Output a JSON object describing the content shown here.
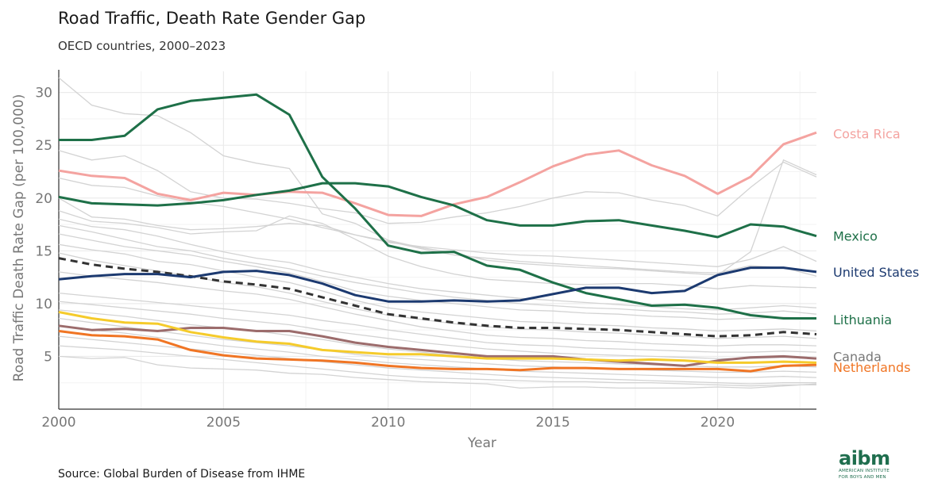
{
  "header": {
    "title": "Road Traffic, Death Rate Gender Gap",
    "subtitle": "OECD countries, 2000–2023"
  },
  "footer": {
    "source": "Source: Global Burden of Disease from IHME",
    "logo_mark": "aibm",
    "logo_line1": "AMERICAN INSTITUTE",
    "logo_line2": "FOR BOYS AND MEN"
  },
  "colors": {
    "background_lines": "#d3d3d3",
    "average": "#333333",
    "grid": "#ebebeb",
    "axis_text": "#777777"
  },
  "chart_data": {
    "type": "line",
    "title": "Road Traffic, Death Rate Gender Gap",
    "subtitle": "OECD countries, 2000–2023",
    "xlabel": "Year",
    "ylabel": "Road Traffic Death Rate Gap (per 100,000)",
    "xlim": [
      2000,
      2023
    ],
    "ylim": [
      0,
      32
    ],
    "x_ticks": [
      2000,
      2005,
      2010,
      2015,
      2020
    ],
    "y_ticks": [
      5,
      10,
      15,
      20,
      25,
      30
    ],
    "grid": true,
    "years": [
      2000,
      2001,
      2002,
      2003,
      2004,
      2005,
      2006,
      2007,
      2008,
      2009,
      2010,
      2011,
      2012,
      2013,
      2014,
      2015,
      2016,
      2017,
      2018,
      2019,
      2020,
      2021,
      2022,
      2023
    ],
    "highlighted_series": [
      {
        "name": "Costa Rica",
        "color": "#f4a3a0",
        "values": [
          22.6,
          22.1,
          21.9,
          20.4,
          19.8,
          20.5,
          20.3,
          20.6,
          20.5,
          19.5,
          18.4,
          18.3,
          19.4,
          20.1,
          21.5,
          23.0,
          24.1,
          24.5,
          23.1,
          22.1,
          20.4,
          22.0,
          25.1,
          26.2
        ]
      },
      {
        "name": "Mexico",
        "color": "#1e7048",
        "values": [
          25.5,
          25.5,
          25.9,
          28.4,
          29.2,
          29.5,
          29.8,
          27.9,
          22.0,
          19.0,
          15.5,
          14.8,
          14.9,
          13.6,
          13.2,
          12.0,
          11.0,
          10.4,
          9.8,
          9.9,
          9.6,
          8.9,
          8.6,
          8.6
        ]
      },
      {
        "name": "United States",
        "color": "#1c3a70",
        "values": [
          12.3,
          12.6,
          12.8,
          12.8,
          12.5,
          13.0,
          13.1,
          12.7,
          11.9,
          10.8,
          10.2,
          10.2,
          10.3,
          10.2,
          10.3,
          10.9,
          11.5,
          11.5,
          11.0,
          11.2,
          12.7,
          13.4,
          13.4,
          13.0
        ]
      },
      {
        "name": "Lithuania",
        "color": "#1e7048",
        "values": [
          20.1,
          19.5,
          19.4,
          19.3,
          19.5,
          19.8,
          20.3,
          20.7,
          21.4,
          21.4,
          21.1,
          20.1,
          19.3,
          17.9,
          17.4,
          17.4,
          17.8,
          17.9,
          17.4,
          16.9,
          16.3,
          17.5,
          17.3,
          16.4
        ]
      },
      {
        "name": "Canada",
        "color": "#9c6c6c",
        "values": [
          7.9,
          7.5,
          7.6,
          7.4,
          7.7,
          7.7,
          7.4,
          7.4,
          6.9,
          6.3,
          5.9,
          5.6,
          5.3,
          5.0,
          5.0,
          5.0,
          4.7,
          4.5,
          4.3,
          4.1,
          4.6,
          4.9,
          5.0,
          4.8
        ]
      },
      {
        "name": "Netherlands",
        "color": "#f07524",
        "values": [
          7.4,
          7.0,
          6.9,
          6.6,
          5.6,
          5.1,
          4.8,
          4.7,
          4.6,
          4.4,
          4.1,
          3.9,
          3.8,
          3.8,
          3.7,
          3.9,
          3.9,
          3.8,
          3.8,
          3.8,
          3.8,
          3.6,
          4.1,
          4.2
        ]
      },
      {
        "name": "",
        "color": "#f5cb2b",
        "values": [
          9.2,
          8.6,
          8.2,
          8.1,
          7.3,
          6.8,
          6.4,
          6.2,
          5.6,
          5.4,
          5.2,
          5.2,
          5.0,
          4.8,
          4.8,
          4.8,
          4.7,
          4.6,
          4.7,
          4.6,
          4.4,
          4.4,
          4.5,
          4.4
        ]
      }
    ],
    "average_series": {
      "name": "",
      "color": "#333333",
      "dashed": true,
      "values": [
        14.3,
        13.7,
        13.3,
        13.0,
        12.6,
        12.1,
        11.8,
        11.4,
        10.6,
        9.8,
        9.0,
        8.6,
        8.2,
        7.9,
        7.7,
        7.7,
        7.6,
        7.5,
        7.3,
        7.1,
        6.9,
        7.0,
        7.3,
        7.1
      ]
    },
    "background_series": [
      {
        "values": [
          31.4,
          28.8,
          28.0,
          27.8,
          26.2,
          24.0,
          23.3,
          22.8,
          18.5,
          17.6,
          16.0,
          15.3,
          14.8,
          14.1,
          13.8,
          13.6,
          13.4,
          13.3,
          13.1,
          12.9,
          12.7,
          14.9,
          23.6,
          22.2
        ]
      },
      {
        "values": [
          24.5,
          23.6,
          24.0,
          22.6,
          20.6,
          20.0,
          19.9,
          19.5,
          19.0,
          18.6,
          17.6,
          17.7,
          18.2,
          18.6,
          19.2,
          20.0,
          20.6,
          20.5,
          19.8,
          19.3,
          18.3,
          21.0,
          23.4,
          22.0
        ]
      },
      {
        "values": [
          21.9,
          21.2,
          21.0,
          20.2,
          19.6,
          19.2,
          18.6,
          18.0,
          17.2,
          16.5,
          15.8,
          15.4,
          15.1,
          14.8,
          14.6,
          14.5,
          14.3,
          14.1,
          13.9,
          13.7,
          13.5,
          14.2,
          15.4,
          14.0
        ]
      },
      {
        "values": [
          20.0,
          18.2,
          18.0,
          17.4,
          17.0,
          17.1,
          17.3,
          17.6,
          17.4,
          16.5,
          15.9,
          15.2,
          14.6,
          14.3,
          14.0,
          13.8,
          13.6,
          13.4,
          13.2,
          13.0,
          12.9,
          13.6,
          13.4,
          12.6
        ]
      },
      {
        "values": [
          18.8,
          17.8,
          17.6,
          17.2,
          16.6,
          16.8,
          16.9,
          18.3,
          17.6,
          16.1,
          14.5,
          13.5,
          12.8,
          12.3,
          12.1,
          11.9,
          11.8,
          11.9,
          11.9,
          11.7,
          11.4,
          11.7,
          11.6,
          11.5
        ]
      },
      {
        "values": [
          18.0,
          17.3,
          17.0,
          16.4,
          15.6,
          14.9,
          14.3,
          13.9,
          13.1,
          12.5,
          11.9,
          11.4,
          11.1,
          10.8,
          10.5,
          10.3,
          10.1,
          9.9,
          9.7,
          9.5,
          9.4,
          9.6,
          9.8,
          9.6
        ]
      },
      {
        "values": [
          17.4,
          16.8,
          16.1,
          15.4,
          15.0,
          14.3,
          13.8,
          13.3,
          12.6,
          12.0,
          11.5,
          11.0,
          10.6,
          10.3,
          10.0,
          9.8,
          9.6,
          9.5,
          9.3,
          9.2,
          9.0,
          9.1,
          9.3,
          9.0
        ]
      },
      {
        "values": [
          16.6,
          16.0,
          15.4,
          15.0,
          14.6,
          14.0,
          13.5,
          12.9,
          12.1,
          11.2,
          10.7,
          10.3,
          10.0,
          9.7,
          9.4,
          9.3,
          9.1,
          9.0,
          8.8,
          8.7,
          8.5,
          8.6,
          8.7,
          8.6
        ]
      },
      {
        "values": [
          15.6,
          15.1,
          14.7,
          14.0,
          13.7,
          13.1,
          12.5,
          12.0,
          11.2,
          10.3,
          9.6,
          9.2,
          8.9,
          8.6,
          8.3,
          8.2,
          8.0,
          7.9,
          7.7,
          7.6,
          7.4,
          7.5,
          7.6,
          7.4
        ]
      },
      {
        "values": [
          14.8,
          14.1,
          13.6,
          13.1,
          12.6,
          12.0,
          11.6,
          11.0,
          10.2,
          9.5,
          8.9,
          8.5,
          8.1,
          7.8,
          7.6,
          7.5,
          7.3,
          7.2,
          7.0,
          6.9,
          6.7,
          6.8,
          6.9,
          6.7
        ]
      },
      {
        "values": [
          13.0,
          12.6,
          12.3,
          12.0,
          11.6,
          11.2,
          10.9,
          10.4,
          9.7,
          9.0,
          8.4,
          7.8,
          7.4,
          7.0,
          6.8,
          6.7,
          6.5,
          6.4,
          6.2,
          6.1,
          6.0,
          6.1,
          6.1,
          6.0
        ]
      },
      {
        "values": [
          11.0,
          10.7,
          10.4,
          10.1,
          9.8,
          9.5,
          9.2,
          8.9,
          8.4,
          8.0,
          7.5,
          7.1,
          6.7,
          6.3,
          6.1,
          6.0,
          5.8,
          5.7,
          5.6,
          5.5,
          5.4,
          5.4,
          5.5,
          5.4
        ]
      },
      {
        "values": [
          10.2,
          9.9,
          9.6,
          9.3,
          9.0,
          8.6,
          8.3,
          8.0,
          7.5,
          7.1,
          6.7,
          6.3,
          6.0,
          5.7,
          5.5,
          5.3,
          5.2,
          5.1,
          5.0,
          4.9,
          4.8,
          4.8,
          4.9,
          4.8
        ]
      },
      {
        "values": [
          9.4,
          9.1,
          8.8,
          8.4,
          8.0,
          7.7,
          7.4,
          7.0,
          6.6,
          6.1,
          5.7,
          5.4,
          5.1,
          4.8,
          4.6,
          4.5,
          4.4,
          4.3,
          4.2,
          4.1,
          4.0,
          4.0,
          4.1,
          4.0
        ]
      },
      {
        "values": [
          8.6,
          8.2,
          7.8,
          7.4,
          7.0,
          6.6,
          6.3,
          6.0,
          5.6,
          5.2,
          4.9,
          4.7,
          4.5,
          4.3,
          4.1,
          4.0,
          3.9,
          3.8,
          3.7,
          3.6,
          3.5,
          3.5,
          3.6,
          3.5
        ]
      },
      {
        "values": [
          7.9,
          7.5,
          7.2,
          6.8,
          6.4,
          6.0,
          5.7,
          5.4,
          5.0,
          4.7,
          4.4,
          4.2,
          4.0,
          3.8,
          3.6,
          3.5,
          3.4,
          3.3,
          3.2,
          3.1,
          3.0,
          3.0,
          3.1,
          3.0
        ]
      },
      {
        "values": [
          6.9,
          6.6,
          6.3,
          6.0,
          5.7,
          5.4,
          5.1,
          4.8,
          4.5,
          4.2,
          3.9,
          3.7,
          3.5,
          3.3,
          3.1,
          3.0,
          2.9,
          2.8,
          2.7,
          2.6,
          2.5,
          2.4,
          2.5,
          2.5
        ]
      },
      {
        "values": [
          6.0,
          5.8,
          5.6,
          5.3,
          5.0,
          4.7,
          4.4,
          4.1,
          3.8,
          3.5,
          3.2,
          3.0,
          2.9,
          2.8,
          2.7,
          2.6,
          2.6,
          2.5,
          2.5,
          2.4,
          2.3,
          2.2,
          2.3,
          2.3
        ]
      },
      {
        "values": [
          5.0,
          4.8,
          4.9,
          4.2,
          3.9,
          3.8,
          3.7,
          3.4,
          3.3,
          3.0,
          2.8,
          2.6,
          2.5,
          2.4,
          2.0,
          2.1,
          2.1,
          2.0,
          2.0,
          2.0,
          2.1,
          2.0,
          2.2,
          2.4
        ]
      }
    ],
    "labels": [
      {
        "text": "Costa Rica",
        "color": "#f4a3a0",
        "y": 26.1
      },
      {
        "text": "Mexico",
        "color": "#1e7048",
        "y": 16.4
      },
      {
        "text": "United States",
        "color": "#1c3a70",
        "y": 13.0
      },
      {
        "text": "Lithuania",
        "color": "#1e7048",
        "y": 8.5
      },
      {
        "text": "Canada",
        "color": "#777777",
        "y": 5.0
      },
      {
        "text": "Netherlands",
        "color": "#f07524",
        "y": 4.0
      }
    ]
  }
}
